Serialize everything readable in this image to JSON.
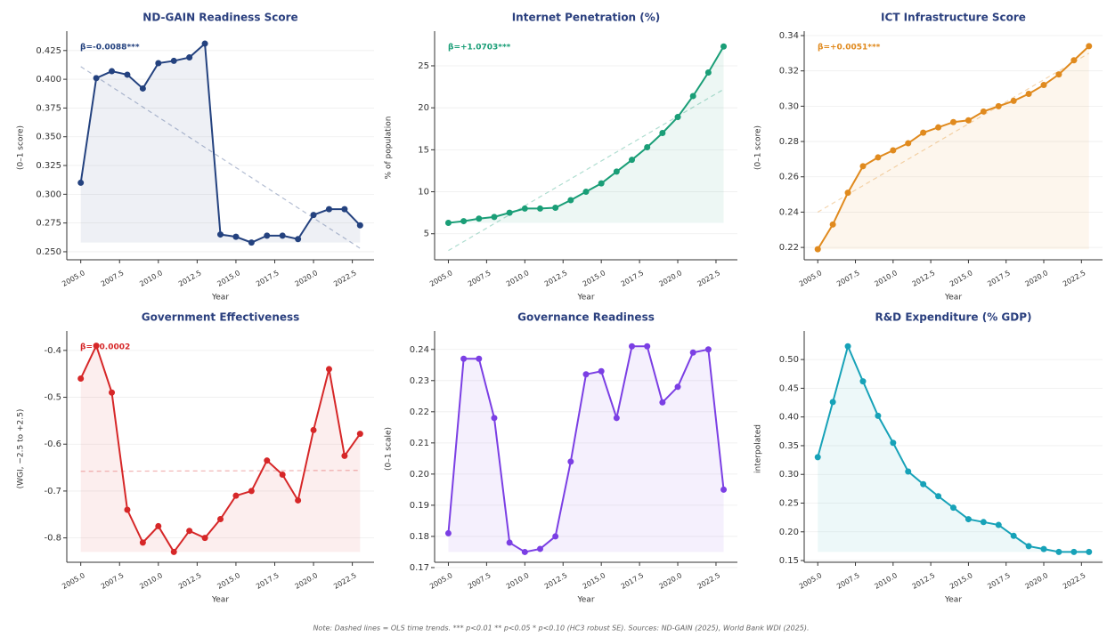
{
  "chart_data": [
    {
      "type": "line",
      "title": "ND-GAIN Readiness Score",
      "annotation": "β=-0.0088***",
      "xlabel": "Year",
      "ylabel": "(0–1 score)",
      "color": "#24427f",
      "x": [
        2005,
        2006,
        2007,
        2008,
        2009,
        2010,
        2011,
        2012,
        2013,
        2014,
        2015,
        2016,
        2017,
        2018,
        2019,
        2020,
        2021,
        2022,
        2023
      ],
      "values": [
        0.31,
        0.401,
        0.407,
        0.404,
        0.392,
        0.414,
        0.416,
        0.419,
        0.431,
        0.265,
        0.263,
        0.258,
        0.264,
        0.264,
        0.261,
        0.282,
        0.287,
        0.287,
        0.273
      ],
      "trend": [
        0.411,
        0.253
      ],
      "xlim": [
        2004.1,
        2023.9
      ],
      "ylim": [
        0.243,
        0.438
      ],
      "xticks": [
        {
          "value": 2005,
          "label": "2005.0"
        },
        2007.5,
        {
          "value": 2010,
          "label": "2010.0"
        },
        2012.5,
        {
          "value": 2015,
          "label": "2015.0"
        },
        2017.5,
        {
          "value": 2020,
          "label": "2020.0"
        },
        2022.5
      ],
      "yticks": [
        {
          "value": 0.25,
          "label": "0.250"
        },
        0.275,
        {
          "value": 0.3,
          "label": "0.300"
        },
        0.325,
        {
          "value": 0.35,
          "label": "0.350"
        },
        0.375,
        {
          "value": 0.4,
          "label": "0.400"
        },
        0.425
      ],
      "grid": true
    },
    {
      "type": "line",
      "title": "Internet Penetration (%)",
      "annotation": "β=+1.0703***",
      "xlabel": "Year",
      "ylabel": "% of population",
      "color": "#1a9e77",
      "x": [
        2005,
        2006,
        2007,
        2008,
        2009,
        2010,
        2011,
        2012,
        2013,
        2014,
        2015,
        2016,
        2017,
        2018,
        2019,
        2020,
        2021,
        2022,
        2023
      ],
      "values": [
        6.3,
        6.5,
        6.8,
        7.0,
        7.5,
        8.0,
        8.0,
        8.1,
        9.0,
        10.0,
        11.0,
        12.4,
        13.8,
        15.3,
        17.0,
        18.9,
        21.4,
        24.2,
        27.3
      ],
      "trend": [
        3.0,
        22.2
      ],
      "xlim": [
        2004.1,
        2023.9
      ],
      "ylim": [
        1.9,
        28.6
      ],
      "xticks": [
        {
          "value": 2005,
          "label": "2005.0"
        },
        2007.5,
        {
          "value": 2010,
          "label": "2010.0"
        },
        2012.5,
        {
          "value": 2015,
          "label": "2015.0"
        },
        2017.5,
        {
          "value": 2020,
          "label": "2020.0"
        },
        2022.5
      ],
      "yticks": [
        5,
        10,
        15,
        20,
        25
      ],
      "grid": true
    },
    {
      "type": "line",
      "title": "ICT Infrastructure Score",
      "annotation": "β=+0.0051***",
      "xlabel": "Year",
      "ylabel": "(0–1 score)",
      "color": "#e08a1e",
      "x": [
        2005,
        2006,
        2007,
        2008,
        2009,
        2010,
        2011,
        2012,
        2013,
        2014,
        2015,
        2016,
        2017,
        2018,
        2019,
        2020,
        2021,
        2022,
        2023
      ],
      "values": [
        0.219,
        0.233,
        0.251,
        0.266,
        0.271,
        0.275,
        0.279,
        0.285,
        0.288,
        0.291,
        0.292,
        0.297,
        0.3,
        0.303,
        0.307,
        0.312,
        0.318,
        0.326,
        0.334
      ],
      "trend": [
        0.24,
        0.33
      ],
      "xlim": [
        2004.1,
        2023.9
      ],
      "ylim": [
        0.213,
        0.34
      ],
      "xticks": [
        {
          "value": 2005,
          "label": "2005.0"
        },
        2007.5,
        {
          "value": 2010,
          "label": "2010.0"
        },
        2012.5,
        {
          "value": 2015,
          "label": "2015.0"
        },
        2017.5,
        {
          "value": 2020,
          "label": "2020.0"
        },
        2022.5
      ],
      "yticks": [
        0.22,
        0.24,
        0.26,
        0.28,
        {
          "value": 0.3,
          "label": "0.30"
        },
        0.32,
        0.34
      ],
      "grid": true
    },
    {
      "type": "line",
      "title": "Government Effectiveness",
      "annotation": "β=+0.0002",
      "xlabel": "Year",
      "ylabel": "(WGI, −2.5 to +2.5)",
      "color": "#d62728",
      "x": [
        2005,
        2006,
        2007,
        2008,
        2009,
        2010,
        2011,
        2012,
        2013,
        2014,
        2015,
        2016,
        2017,
        2018,
        2019,
        2020,
        2021,
        2022,
        2023
      ],
      "values": [
        -0.46,
        -0.39,
        -0.49,
        -0.74,
        -0.81,
        -0.775,
        -0.83,
        -0.785,
        -0.8,
        -0.76,
        -0.71,
        -0.7,
        -0.635,
        -0.665,
        -0.72,
        -0.57,
        -0.44,
        -0.625,
        -0.578
      ],
      "trend": [
        -0.658,
        -0.656
      ],
      "xlim": [
        2004.1,
        2023.9
      ],
      "ylim": [
        -0.852,
        -0.368
      ],
      "xticks": [
        {
          "value": 2005,
          "label": "2005.0"
        },
        2007.5,
        {
          "value": 2010,
          "label": "2010.0"
        },
        2012.5,
        {
          "value": 2015,
          "label": "2015.0"
        },
        2017.5,
        {
          "value": 2020,
          "label": "2020.0"
        },
        2022.5
      ],
      "yticks": [
        -0.8,
        -0.7,
        -0.6,
        -0.5,
        -0.4
      ],
      "grid": true
    },
    {
      "type": "line",
      "title": "Governance Readiness",
      "xlabel": "Year",
      "ylabel": "(0–1 scale)",
      "color": "#7b3fe4",
      "x": [
        2005,
        2006,
        2007,
        2008,
        2009,
        2010,
        2011,
        2012,
        2013,
        2014,
        2015,
        2016,
        2017,
        2018,
        2019,
        2020,
        2021,
        2022,
        2023
      ],
      "values": [
        0.181,
        0.237,
        0.237,
        0.218,
        0.178,
        0.175,
        0.176,
        0.18,
        0.204,
        0.232,
        0.233,
        0.218,
        0.241,
        0.241,
        0.223,
        0.228,
        0.239,
        0.24,
        0.195
      ],
      "xlim": [
        2004.1,
        2023.9
      ],
      "ylim": [
        0.1717,
        0.2445
      ],
      "xticks": [
        {
          "value": 2005,
          "label": "2005.0"
        },
        2007.5,
        {
          "value": 2010,
          "label": "2010.0"
        },
        2012.5,
        {
          "value": 2015,
          "label": "2015.0"
        },
        2017.5,
        {
          "value": 2020,
          "label": "2020.0"
        },
        2022.5
      ],
      "yticks": [
        0.17,
        0.18,
        0.19,
        {
          "value": 0.2,
          "label": "0.20"
        },
        0.21,
        0.22,
        0.23,
        0.24
      ],
      "grid": true
    },
    {
      "type": "line",
      "title": "R&D Expenditure (% GDP)",
      "xlabel": "Year",
      "ylabel": "interpolated",
      "color": "#17a2b8",
      "x": [
        2005,
        2006,
        2007,
        2008,
        2009,
        2010,
        2011,
        2012,
        2013,
        2014,
        2015,
        2016,
        2017,
        2018,
        2019,
        2020,
        2021,
        2022,
        2023
      ],
      "values": [
        0.33,
        0.426,
        0.523,
        0.462,
        0.402,
        0.355,
        0.305,
        0.283,
        0.262,
        0.242,
        0.222,
        0.217,
        0.212,
        0.193,
        0.175,
        0.17,
        0.165,
        0.165,
        0.165
      ],
      "xlim": [
        2004.1,
        2023.9
      ],
      "ylim": [
        0.147,
        0.542
      ],
      "xticks": [
        {
          "value": 2005,
          "label": "2005.0"
        },
        2007.5,
        {
          "value": 2010,
          "label": "2010.0"
        },
        2012.5,
        {
          "value": 2015,
          "label": "2015.0"
        },
        2017.5,
        {
          "value": 2020,
          "label": "2020.0"
        },
        2022.5
      ],
      "yticks": [
        0.15,
        {
          "value": 0.2,
          "label": "0.20"
        },
        0.25,
        {
          "value": 0.3,
          "label": "0.30"
        },
        0.35,
        {
          "value": 0.4,
          "label": "0.40"
        },
        0.45,
        {
          "value": 0.5,
          "label": "0.50"
        }
      ],
      "grid": true
    }
  ],
  "note": "Note: Dashed lines = OLS time trends. *** p<0.01 ** p<0.05 * p<0.10 (HC3 robust SE). Sources: ND-GAIN (2025), World Bank WDI (2025)."
}
